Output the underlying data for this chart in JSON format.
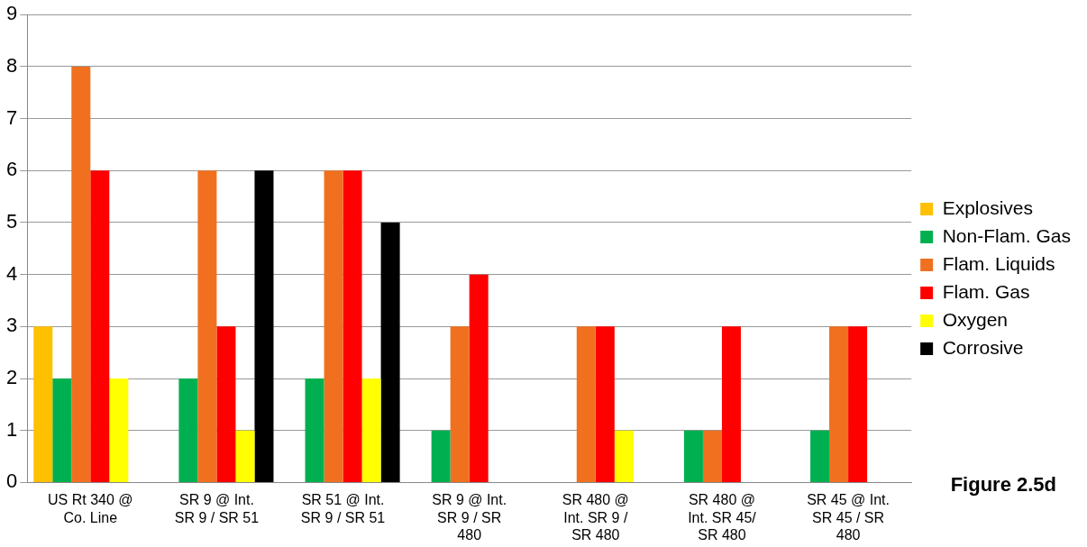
{
  "chart_data": {
    "type": "bar",
    "categories": [
      "US Rt 340 @\nCo. Line",
      "SR 9 @ Int.\nSR 9 / SR 51",
      "SR 51 @ Int.\nSR 9 / SR 51",
      "SR 9 @ Int.\nSR 9 / SR\n480",
      "SR 480 @\nInt. SR 9 /\nSR 480",
      "SR 480 @\nInt. SR 45/\nSR 480",
      "SR 45 @ Int.\nSR 45 / SR\n480"
    ],
    "series": [
      {
        "name": "Explosives",
        "color": "#ffc000",
        "values": [
          3,
          0,
          0,
          0,
          0,
          0,
          0
        ]
      },
      {
        "name": "Non-Flam. Gas",
        "color": "#00b050",
        "values": [
          2,
          2,
          2,
          1,
          0,
          1,
          1
        ]
      },
      {
        "name": "Flam. Liquids",
        "color": "#f07020",
        "values": [
          8,
          6,
          6,
          3,
          3,
          1,
          3
        ]
      },
      {
        "name": "Flam. Gas",
        "color": "#ff0000",
        "values": [
          6,
          3,
          6,
          4,
          3,
          3,
          3
        ]
      },
      {
        "name": "Oxygen",
        "color": "#ffff00",
        "values": [
          2,
          1,
          2,
          0,
          1,
          0,
          0
        ]
      },
      {
        "name": "Corrosive",
        "color": "#000000",
        "values": [
          0,
          6,
          5,
          0,
          0,
          0,
          0
        ]
      }
    ],
    "ylim": [
      0,
      9
    ],
    "yticks": [
      0,
      1,
      2,
      3,
      4,
      5,
      6,
      7,
      8,
      9
    ],
    "grid": "y",
    "legend": "right",
    "annotations": [
      "Figure 2.5d"
    ]
  }
}
